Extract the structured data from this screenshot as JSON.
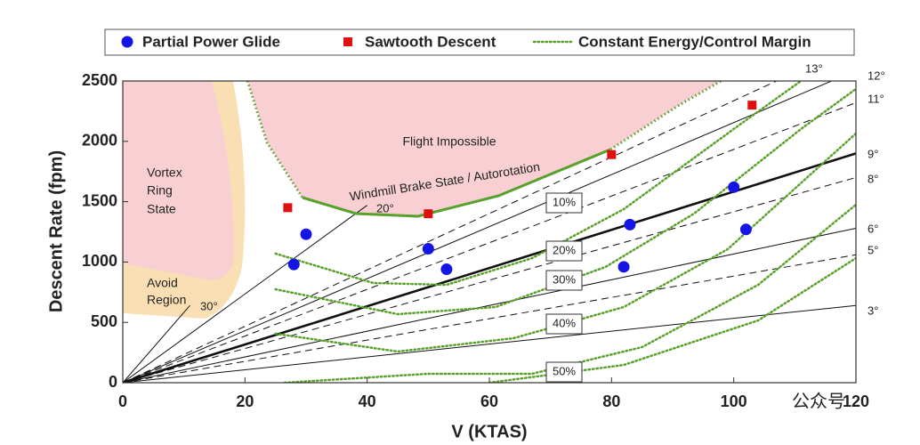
{
  "chart_data": {
    "type": "scatter",
    "xlabel": "V (KTAS)",
    "ylabel": "Descent Rate (fpm)",
    "xlim": [
      0,
      120
    ],
    "ylim": [
      0,
      2500
    ],
    "xticks": [
      0,
      20,
      40,
      60,
      80,
      100,
      120
    ],
    "yticks": [
      0,
      500,
      1000,
      1500,
      2000,
      2500
    ],
    "series": [
      {
        "name": "Partial Power Glide",
        "color": "#1414e6",
        "marker": "circle",
        "x": [
          28,
          30,
          50,
          53,
          83,
          82,
          100,
          102
        ],
        "values": [
          980,
          1230,
          1110,
          940,
          1310,
          960,
          1620,
          1270
        ]
      },
      {
        "name": "Sawtooth Descent",
        "color": "#e01010",
        "marker": "square",
        "x": [
          27,
          50,
          80,
          103
        ],
        "values": [
          1450,
          1400,
          1890,
          2300
        ]
      }
    ],
    "curve_legend": {
      "name": "Constant Energy/Control Margin",
      "color": "#5aa02c"
    },
    "boundary": {
      "x": [
        20.4,
        23.6,
        29.4,
        38.2,
        48.3,
        61.5,
        79.8,
        90.6,
        97.9
      ],
      "y": [
        2500,
        1990,
        1534,
        1401,
        1379,
        1549,
        1932,
        2286,
        2500
      ]
    },
    "energy_curves": [
      {
        "x": [
          25,
          41,
          53,
          67,
          82,
          101,
          111
        ],
        "y": [
          1070,
          826,
          811,
          1032,
          1438,
          2139,
          2500
        ]
      },
      {
        "x": [
          25,
          45,
          61,
          79,
          93.5,
          111,
          120
        ],
        "y": [
          774,
          568,
          627,
          959,
          1401,
          2102,
          2434
        ]
      },
      {
        "x": [
          25,
          45,
          64,
          82,
          99,
          120
        ],
        "y": [
          406,
          258,
          369,
          627,
          1106,
          2065
        ]
      },
      {
        "x": [
          26.5,
          50,
          67,
          85,
          104,
          120
        ],
        "y": [
          0,
          74,
          74,
          295,
          811,
          1475
        ]
      },
      {
        "x": [
          60,
          82,
          104,
          120
        ],
        "y": [
          0,
          147,
          516,
          1032
        ]
      }
    ],
    "glide_lines": [
      {
        "label": "3°",
        "style": "solid",
        "x": [
          0,
          120
        ],
        "y": [
          0,
          640
        ]
      },
      {
        "label": "5°",
        "style": "dashed",
        "x": [
          0,
          120
        ],
        "y": [
          0,
          1060
        ]
      },
      {
        "label": "6°",
        "style": "solid",
        "x": [
          0,
          120
        ],
        "y": [
          0,
          1280
        ]
      },
      {
        "label": "8°",
        "style": "dashed",
        "x": [
          0,
          120
        ],
        "y": [
          0,
          1700
        ]
      },
      {
        "label": "9°",
        "style": "bold",
        "x": [
          0,
          120
        ],
        "y": [
          0,
          1900
        ]
      },
      {
        "label": "11°",
        "style": "dashed",
        "x": [
          0,
          120
        ],
        "y": [
          0,
          2320
        ]
      },
      {
        "label": "12°",
        "style": "solid",
        "x": [
          0,
          116
        ],
        "y": [
          0,
          2500
        ]
      },
      {
        "label": "13°",
        "style": "dashed",
        "x": [
          0,
          107
        ],
        "y": [
          0,
          2500
        ]
      },
      {
        "label": "20°",
        "style": "solid",
        "x": [
          0,
          40
        ],
        "y": [
          0,
          1470
        ]
      },
      {
        "label": "30°",
        "style": "solid",
        "x": [
          0,
          11
        ],
        "y": [
          0,
          640
        ]
      }
    ],
    "margin_labels": [
      "10%",
      "20%",
      "30%",
      "40%",
      "50%"
    ],
    "annotations": {
      "flight_impossible": "Flight Impossible",
      "windmill": "Windmill Brake State / Autorotation",
      "vortex": [
        "Vortex",
        "Ring",
        "State"
      ],
      "avoid": [
        "Avoid",
        "Region"
      ]
    },
    "watermark": "公众号"
  }
}
